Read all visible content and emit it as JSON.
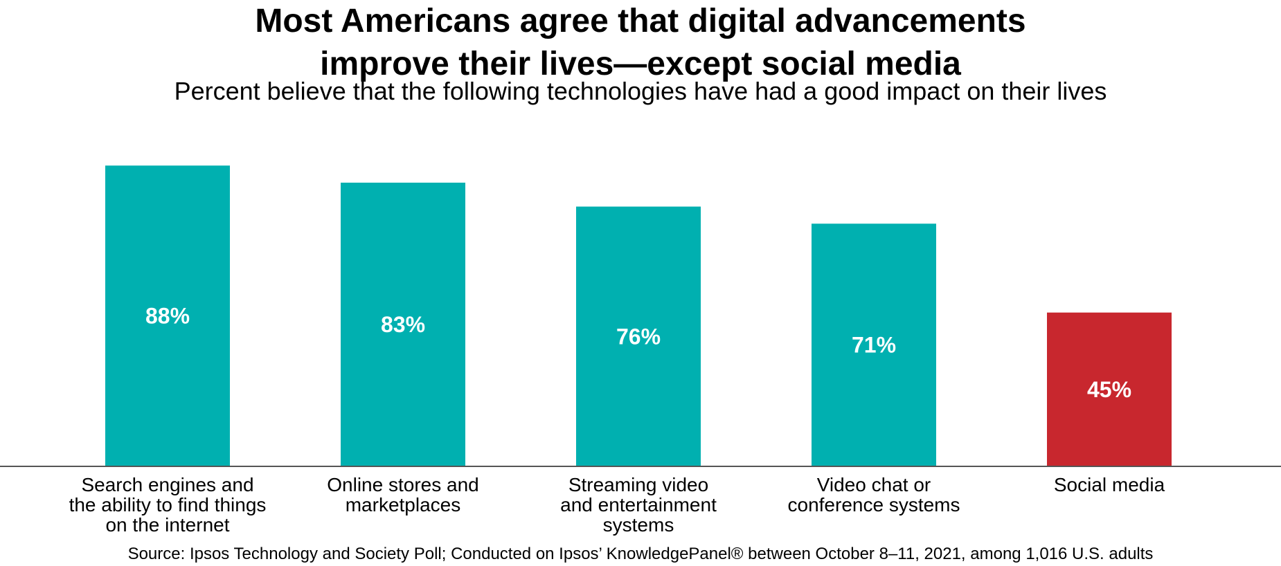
{
  "title_lines": [
    "Most Americans agree that digital advancements",
    "improve their lives—except social media"
  ],
  "subtitle": "Percent believe that the following technologies have had a good impact on their lives",
  "source": "Source: Ipsos Technology and Society Poll; Conducted on Ipsos’ KnowledgePanel® between October 8–11, 2021, among 1,016 U.S. adults",
  "colors": {
    "default_bar": "#00b0b0",
    "highlight_bar": "#c8272e",
    "value_label": "#ffffff",
    "axis": "#555555"
  },
  "chart_data": {
    "type": "bar",
    "title": "Most Americans agree that digital advancements improve their lives—except social media",
    "subtitle": "Percent believe that the following technologies have had a good impact on their lives",
    "xlabel": "",
    "ylabel": "",
    "ylim": [
      0,
      100
    ],
    "grid": false,
    "legend": "none",
    "categories": [
      [
        "Search engines and",
        "the ability to find things",
        "on the internet"
      ],
      [
        "Online stores and",
        "marketplaces"
      ],
      [
        "Streaming video",
        "and entertainment",
        "systems"
      ],
      [
        "Video chat or",
        "conference systems"
      ],
      [
        "Social media"
      ]
    ],
    "values": [
      88,
      83,
      76,
      71,
      45
    ],
    "value_labels": [
      "88%",
      "83%",
      "76%",
      "71%",
      "45%"
    ],
    "highlight_index": 4
  }
}
